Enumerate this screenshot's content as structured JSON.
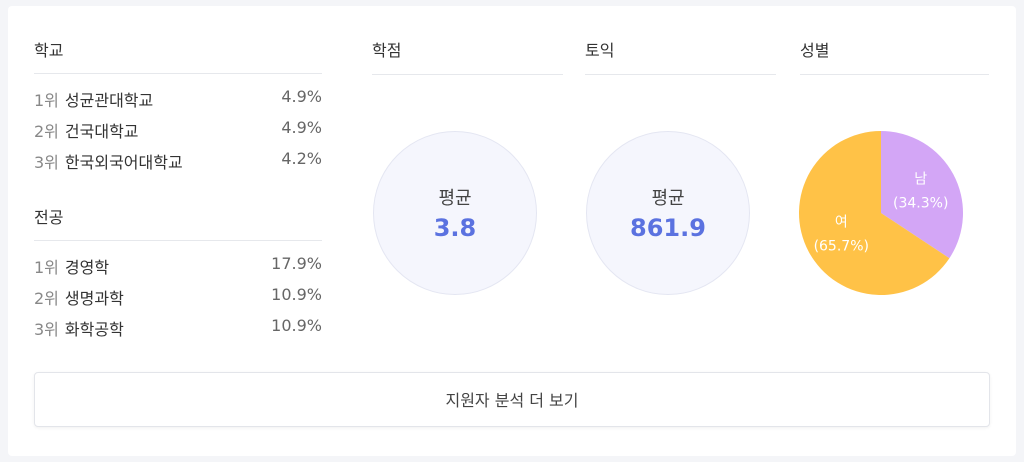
{
  "school": {
    "title": "학교",
    "rows": [
      [
        "1위",
        "성균관대학교",
        "4.9%"
      ],
      [
        "2위",
        "건국대학교",
        "4.9%"
      ],
      [
        "3위",
        "한국외국어대학교",
        "4.2%"
      ]
    ]
  },
  "major": {
    "title": "전공",
    "rows": [
      [
        "1위",
        "경영학",
        "17.9%"
      ],
      [
        "2위",
        "생명과학",
        "10.9%"
      ],
      [
        "3위",
        "화학공학",
        "10.9%"
      ]
    ]
  },
  "gpa": {
    "title": "학점",
    "label": "평균",
    "value": 3.8
  },
  "toeic": {
    "title": "토익",
    "label": "평균",
    "value": 861.9
  },
  "chart_data": {
    "type": "pie",
    "title": "성별",
    "categories": [
      "남",
      "여"
    ],
    "values": [
      34.3,
      65.7
    ],
    "value_labels": [
      "(34.3%)",
      "(65.7%)"
    ],
    "colors": [
      "#d3a6f6",
      "#ffc247"
    ]
  },
  "button": {
    "label": "지원자 분석 더 보기"
  }
}
